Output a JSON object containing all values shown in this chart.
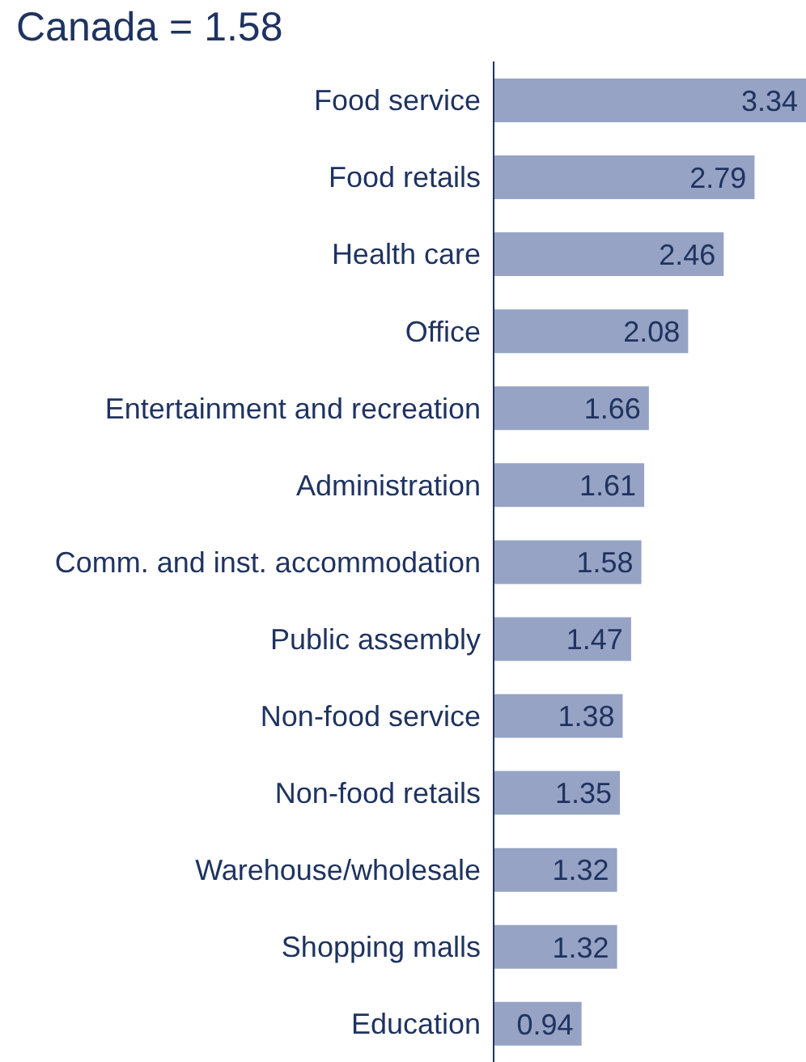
{
  "chart_data": {
    "type": "bar",
    "orientation": "horizontal",
    "title": "Canada = 1.58",
    "categories": [
      "Food service",
      "Food retails",
      "Health care",
      "Office",
      "Entertainment and recreation",
      "Administration",
      "Comm. and inst. accommodation",
      "Public assembly",
      "Non-food service",
      "Non-food retails",
      "Warehouse/wholesale",
      "Shopping malls",
      "Education"
    ],
    "values": [
      3.34,
      2.79,
      2.46,
      2.08,
      1.66,
      1.61,
      1.58,
      1.47,
      1.38,
      1.35,
      1.32,
      1.32,
      0.94
    ],
    "color": "#97a3c4",
    "data_labels": true
  }
}
